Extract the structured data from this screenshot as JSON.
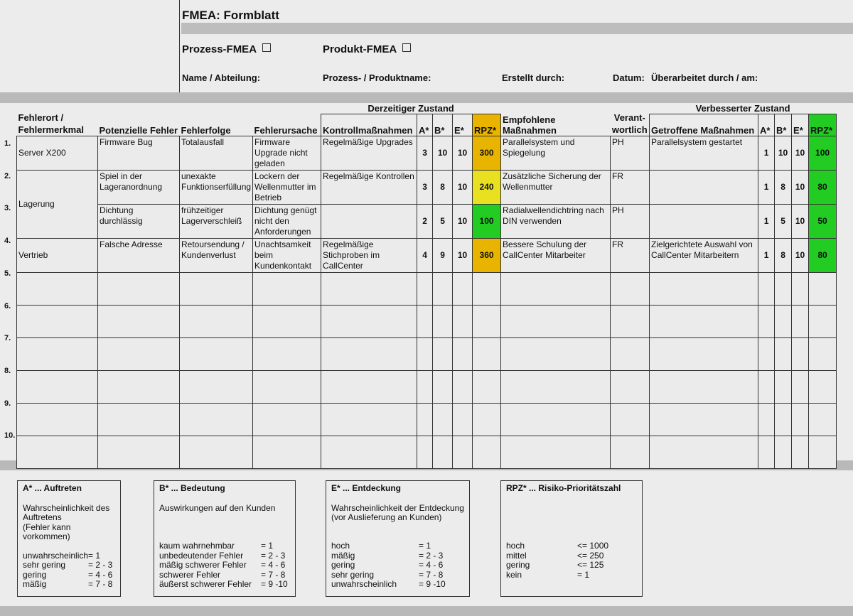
{
  "header": {
    "title": "FMEA: Formblatt",
    "prozess_fmea": "Prozess-FMEA",
    "produkt_fmea": "Produkt-FMEA",
    "name_abteilung": "Name / Abteilung:",
    "prozess_produktname": "Prozess- / Produktname:",
    "erstellt_durch": "Erstellt durch:",
    "datum": "Datum:",
    "ueberarbeitet": "Überarbeitet durch / am:"
  },
  "table": {
    "group_current": "Derzeitiger Zustand",
    "group_improved": "Verbesserter Zustand",
    "columns": [
      "Fehlerort / Fehlermerkmal",
      "Potenzielle Fehler",
      "Fehlerfolge",
      "Fehlerursache",
      "Kontrollmaßnahmen",
      "A*",
      "B*",
      "E*",
      "RPZ*",
      "Empfohlene Maßnahmen",
      "Verant-wortlich",
      "Getroffene Maßnahmen",
      "A*",
      "B*",
      "E*",
      "RPZ*"
    ],
    "col_fehlerort_1": "Fehlerort /",
    "col_fehlerort_2": "Fehlermerkmal",
    "col_verant_1": "Verant-",
    "col_verant_2": "wortlich",
    "row_numbers": [
      "1.",
      "2.",
      "3.",
      "4.",
      "5.",
      "6.",
      "7.",
      "8.",
      "9.",
      "10."
    ],
    "rows": [
      {
        "ort": "Server X200",
        "fehler": "Firmware Bug",
        "folge": "Totalausfall",
        "ursache": "Firmware Upgrade nicht geladen",
        "kontrolle": "Regelmäßige Upgrades",
        "a": "3",
        "b": "10",
        "e": "10",
        "rpz": "300",
        "rpz_color": "#e8b400",
        "empf": "Parallelsystem und Spiegelung",
        "verant": "PH",
        "getroffen": "Parallelsystem gestartet",
        "a2": "1",
        "b2": "10",
        "e2": "10",
        "rpz2": "100",
        "rpz2_color": "#22cc22"
      },
      {
        "ort": "Lagerung",
        "fehler": "Spiel in der Lageranordnung",
        "folge": "unexakte Funktionserfüllung",
        "ursache": "Lockern der Wellenmutter im Betrieb",
        "kontrolle": "Regelmäßige Kontrollen",
        "a": "3",
        "b": "8",
        "e": "10",
        "rpz": "240",
        "rpz_color": "#e8e020",
        "empf": "Zusätzliche Sicherung der Wellenmutter",
        "verant": "FR",
        "getroffen": "",
        "a2": "1",
        "b2": "8",
        "e2": "10",
        "rpz2": "80",
        "rpz2_color": "#22cc22"
      },
      {
        "ort": "",
        "fehler": "Dichtung durchlässig",
        "folge": "frühzeitiger Lagerverschleiß",
        "ursache": "Dichtung genügt nicht den Anforderungen",
        "kontrolle": "",
        "a": "2",
        "b": "5",
        "e": "10",
        "rpz": "100",
        "rpz_color": "#22cc22",
        "empf": "Radialwellendichtring nach DIN verwenden",
        "verant": "PH",
        "getroffen": "",
        "a2": "1",
        "b2": "5",
        "e2": "10",
        "rpz2": "50",
        "rpz2_color": "#22cc22"
      },
      {
        "ort": "Vertrieb",
        "fehler": "Falsche Adresse",
        "folge": "Retoursendung / Kundenverlust",
        "ursache": "Unachtsamkeit beim Kundenkontakt",
        "kontrolle": "Regelmäßige Stichproben im CallCenter",
        "a": "4",
        "b": "9",
        "e": "10",
        "rpz": "360",
        "rpz_color": "#e8b400",
        "empf": "Bessere Schulung der CallCenter Mitarbeiter",
        "verant": "FR",
        "getroffen": "Zielgerichtete Auswahl von CallCenter Mitarbeitern",
        "a2": "1",
        "b2": "8",
        "e2": "10",
        "rpz2": "80",
        "rpz2_color": "#22cc22"
      }
    ]
  },
  "legend": [
    {
      "title": "A* ... Auftreten",
      "desc": [
        "Wahrscheinlichkeit des",
        "Auftretens",
        "(Fehler kann",
        "vorkommen)"
      ],
      "items": [
        [
          "unwahrscheinlich",
          "= 1"
        ],
        [
          "sehr gering",
          "= 2 - 3"
        ],
        [
          "gering",
          "= 4 - 6"
        ],
        [
          "mäßig",
          "= 7 - 8"
        ]
      ]
    },
    {
      "title": "B* ... Bedeutung",
      "desc": [
        "Auswirkungen auf den Kunden",
        "",
        ""
      ],
      "items": [
        [
          "kaum wahrnehmbar",
          "= 1"
        ],
        [
          "unbedeutender  Fehler",
          "= 2 - 3"
        ],
        [
          "mäßig schwerer Fehler",
          "= 4 - 6"
        ],
        [
          "schwerer Fehler",
          "= 7 - 8"
        ],
        [
          "äußerst schwerer Fehler",
          "= 9 -10"
        ]
      ]
    },
    {
      "title": "E* ... Entdeckung",
      "desc": [
        "Wahrscheinlichkeit der Entdeckung",
        "(vor Auslieferung  an Kunden)",
        ""
      ],
      "items": [
        [
          "hoch",
          "= 1"
        ],
        [
          "mäßig",
          "= 2 - 3"
        ],
        [
          "gering",
          "= 4 - 6"
        ],
        [
          "sehr gering",
          "= 7 - 8"
        ],
        [
          "unwahrscheinlich",
          "= 9 -10"
        ]
      ]
    },
    {
      "title": "RPZ* ... Risiko-Prioritätszahl",
      "desc": [
        "",
        "",
        ""
      ],
      "items": [
        [
          "hoch",
          "<= 1000"
        ],
        [
          "mittel",
          "<= 250"
        ],
        [
          "gering",
          "<= 125"
        ],
        [
          "kein",
          "= 1"
        ]
      ]
    }
  ]
}
